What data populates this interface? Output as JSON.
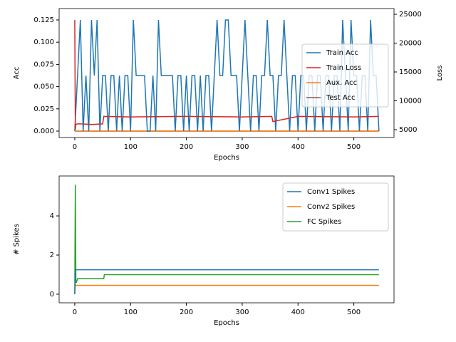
{
  "chart_data": [
    {
      "type": "line",
      "xlabel": "Epochs",
      "ylabel": "Acc",
      "y2label": "Loss",
      "xlim": [
        -28,
        572
      ],
      "xticks": [
        0,
        100,
        200,
        300,
        400,
        500
      ],
      "ylim": [
        -0.0072,
        0.1378
      ],
      "yticks": [
        {
          "value": 0,
          "label": "0.000"
        },
        0.025,
        {
          "value": 0.05,
          "label": "0.050"
        },
        0.075,
        {
          "value": 0.1,
          "label": "0.100"
        },
        0.125
      ],
      "y2lim": [
        3640,
        25990
      ],
      "y2ticks": [
        5000,
        10000,
        15000,
        20000,
        25000
      ],
      "legend": "right",
      "series": [
        {
          "name": "Train Acc",
          "color": "#1f77b4",
          "x": [
            0,
            5,
            10,
            15,
            20,
            25,
            30,
            35,
            40,
            45,
            50,
            55,
            60,
            65,
            70,
            75,
            80,
            85,
            90,
            95,
            100,
            105,
            110,
            115,
            120,
            125,
            130,
            135,
            140,
            145,
            150,
            155,
            160,
            165,
            170,
            175,
            180,
            185,
            190,
            195,
            200,
            205,
            210,
            215,
            220,
            225,
            230,
            235,
            240,
            245,
            250,
            255,
            260,
            265,
            270,
            275,
            280,
            285,
            290,
            295,
            300,
            305,
            310,
            315,
            320,
            325,
            330,
            335,
            340,
            345,
            350,
            355,
            360,
            365,
            370,
            375,
            380,
            385,
            390,
            395,
            400,
            405,
            410,
            415,
            420,
            425,
            430,
            435,
            440,
            445,
            450,
            455,
            460,
            465,
            470,
            475,
            480,
            485,
            490,
            495,
            500,
            505,
            510,
            515,
            520,
            525,
            530,
            535,
            540,
            545
          ],
          "values": [
            0,
            0.0625,
            0.125,
            0,
            0.0625,
            0,
            0.125,
            0.0625,
            0.125,
            0,
            0.0625,
            0.0625,
            0,
            0.0625,
            0.0625,
            0,
            0.0625,
            0,
            0.0625,
            0.0625,
            0,
            0.125,
            0.0625,
            0.0625,
            0.0625,
            0.0625,
            0,
            0,
            0.0625,
            0,
            0.125,
            0.0625,
            0.0625,
            0.0625,
            0.0625,
            0.0625,
            0,
            0.0625,
            0.0625,
            0,
            0.0625,
            0,
            0.0625,
            0.0625,
            0,
            0.0625,
            0,
            0.0625,
            0.0625,
            0,
            0.0625,
            0.125,
            0.0625,
            0.0625,
            0.125,
            0.125,
            0.0625,
            0.0625,
            0.0625,
            0,
            0.0625,
            0.125,
            0.0625,
            0,
            0.0625,
            0.0625,
            0,
            0.0625,
            0.0625,
            0.125,
            0.0625,
            0.0625,
            0,
            0.0625,
            0.0625,
            0.125,
            0.0625,
            0,
            0.0625,
            0.0625,
            0,
            0.0625,
            0.0625,
            0,
            0.0625,
            0.0625,
            0,
            0.0625,
            0.0625,
            0,
            0.0625,
            0.0625,
            0,
            0.0625,
            0.0625,
            0,
            0.125,
            0.0625,
            0,
            0.125,
            0.0625,
            0.0625,
            0,
            0.0625,
            0.0625,
            0,
            0.125,
            0.0625,
            0.0625,
            0
          ]
        },
        {
          "name": "Train Loss",
          "color": "#d62728",
          "axis": "y2",
          "x": [
            0,
            1,
            2,
            5,
            10,
            30,
            50,
            52,
            100,
            200,
            300,
            353,
            355,
            400,
            500,
            545
          ],
          "values": [
            24000,
            5000,
            5900,
            6000,
            6000,
            5900,
            6000,
            7300,
            7200,
            7300,
            7200,
            7300,
            6400,
            7300,
            7200,
            7300
          ]
        },
        {
          "name": "Aux. Acc",
          "color": "#ff7f0e",
          "x": [
            0,
            545
          ],
          "values": [
            0,
            0
          ]
        },
        {
          "name": "Test Acc",
          "color": "#8c564b",
          "x": [
            0,
            545
          ],
          "values": [
            0,
            0
          ]
        }
      ]
    },
    {
      "type": "line",
      "xlabel": "Epochs",
      "ylabel": "# Spikes",
      "xlim": [
        -28,
        572
      ],
      "xticks": [
        0,
        100,
        200,
        300,
        400,
        500
      ],
      "ylim": [
        -0.44,
        6.04
      ],
      "yticks": [
        0,
        2,
        4
      ],
      "legend": "upper right",
      "series": [
        {
          "name": "Conv1 Spikes",
          "color": "#1f77b4",
          "x": [
            0,
            1,
            2,
            5,
            545
          ],
          "values": [
            0,
            1.2,
            1.25,
            1.25,
            1.25
          ]
        },
        {
          "name": "Conv2 Spikes",
          "color": "#ff7f0e",
          "x": [
            0,
            1,
            2,
            5,
            545
          ],
          "values": [
            0,
            0.5,
            0.45,
            0.45,
            0.45
          ]
        },
        {
          "name": "FC Spikes",
          "color": "#2ca02c",
          "x": [
            0,
            1,
            2,
            3,
            5,
            52,
            53,
            545
          ],
          "values": [
            0,
            5.6,
            0.6,
            0.6,
            0.8,
            0.8,
            1.0,
            1.0
          ]
        }
      ]
    }
  ]
}
